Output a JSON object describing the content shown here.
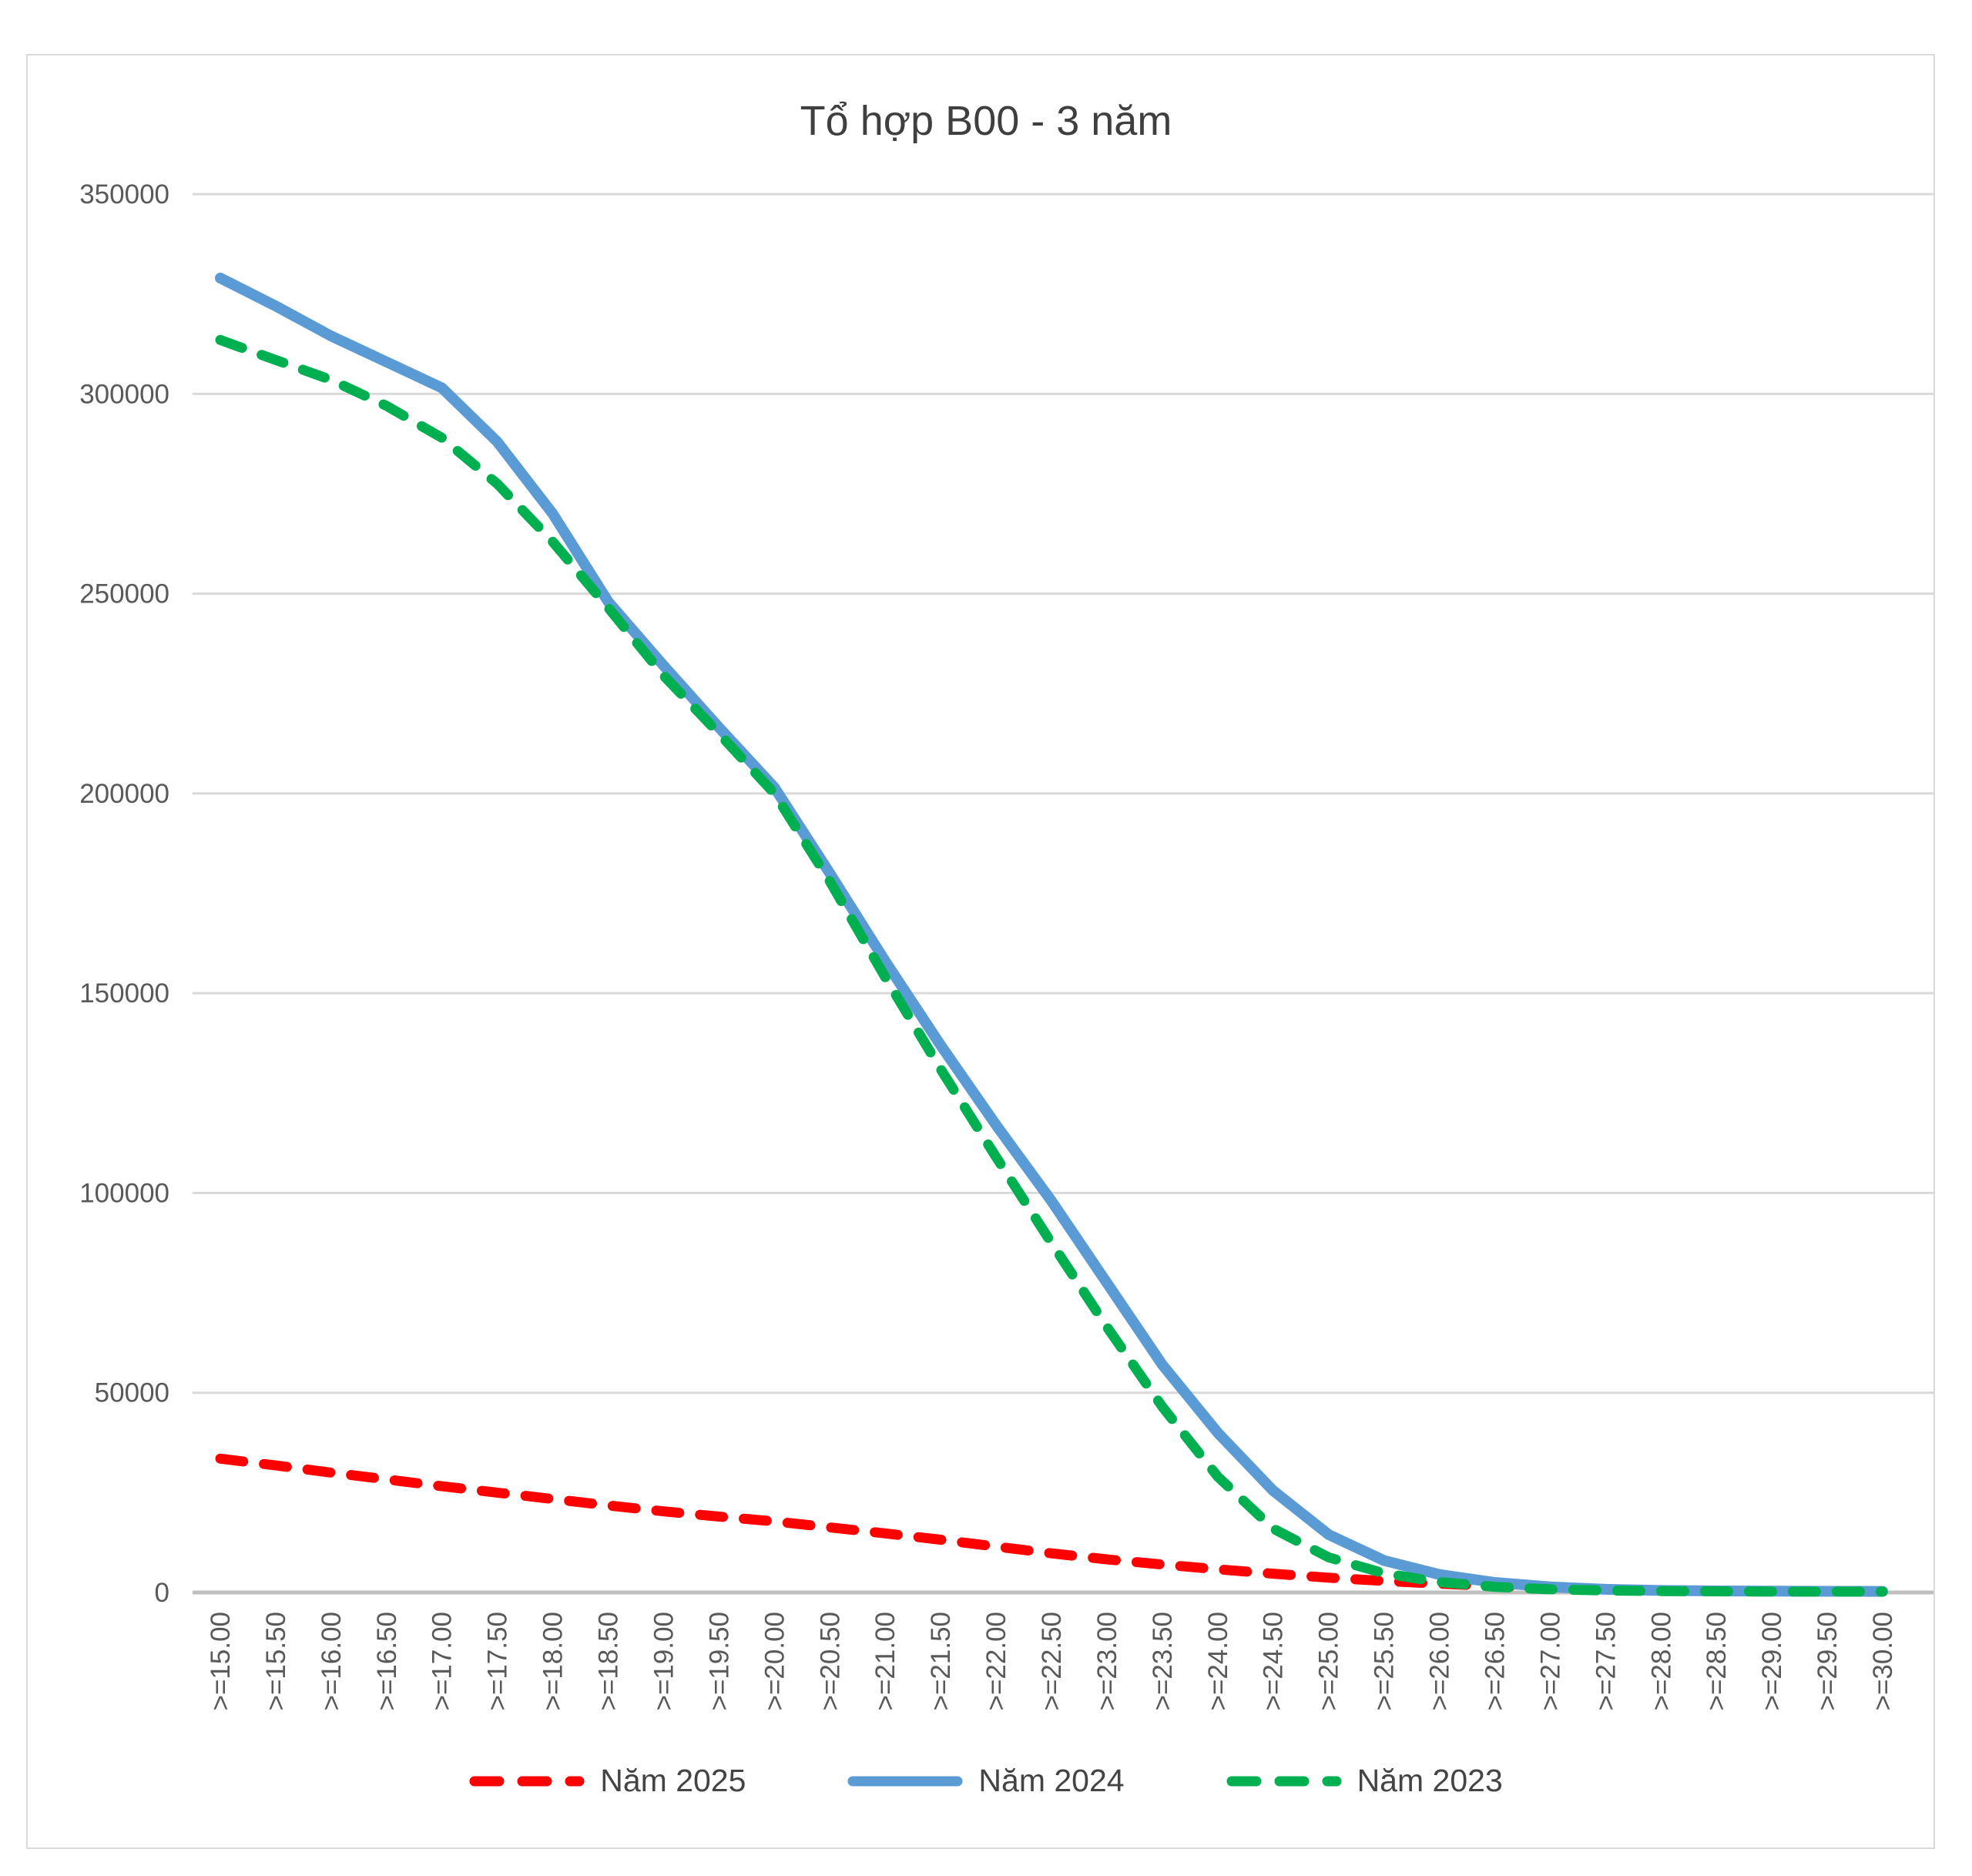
{
  "chart": {
    "title": "Tổ hợp B00 - 3 năm"
  },
  "chart_data": {
    "type": "line",
    "title": "Tổ hợp B00 - 3 năm",
    "xlabel": "",
    "ylabel": "",
    "categories": [
      ">=15.00",
      ">=15.50",
      ">=16.00",
      ">=16.50",
      ">=17.00",
      ">=17.50",
      ">=18.00",
      ">=18.50",
      ">=19.00",
      ">=19.50",
      ">=20.00",
      ">=20.50",
      ">=21.00",
      ">=21.50",
      ">=22.00",
      ">=22.50",
      ">=23.00",
      ">=23.50",
      ">=24.00",
      ">=24.50",
      ">=25.00",
      ">=25.50",
      ">=26.00",
      ">=26.50",
      ">=27.00",
      ">=27.50",
      ">=28.00",
      ">=28.50",
      ">=29.00",
      ">=29.50",
      ">=30.00"
    ],
    "series": [
      {
        "name": "Năm 2025",
        "color": "#FF0000",
        "dashed": true,
        "values": [
          33500,
          31800,
          30000,
          28300,
          26600,
          25000,
          23400,
          21800,
          20300,
          19000,
          17800,
          16300,
          14800,
          13200,
          11500,
          9800,
          8300,
          7000,
          5800,
          4700,
          3700,
          2900,
          2200,
          1600,
          1100,
          750,
          500,
          380,
          300,
          260,
          240
        ]
      },
      {
        "name": "Năm 2024",
        "color": "#5B9BD5",
        "dashed": false,
        "values": [
          329000,
          322000,
          314500,
          308000,
          301500,
          288000,
          270000,
          248000,
          232000,
          216500,
          201500,
          180000,
          158000,
          137000,
          117000,
          98000,
          77500,
          57000,
          40000,
          25500,
          14500,
          8000,
          4500,
          2500,
          1400,
          800,
          500,
          380,
          320,
          290,
          270
        ]
      },
      {
        "name": "Năm 2023",
        "color": "#00B050",
        "dashed": true,
        "values": [
          313500,
          308500,
          303500,
          297000,
          289000,
          277500,
          263000,
          246500,
          229500,
          215000,
          200000,
          178000,
          154000,
          131000,
          109000,
          87500,
          66500,
          46500,
          29000,
          16000,
          8800,
          4800,
          2600,
          1400,
          800,
          500,
          350,
          280,
          240,
          220,
          210
        ]
      }
    ],
    "ylim": [
      0,
      350000
    ],
    "ytick_step": 50000,
    "ytick_labels": [
      "0",
      "50000",
      "100000",
      "150000",
      "200000",
      "250000",
      "300000",
      "350000"
    ],
    "grid": "horizontal",
    "legend_position": "bottom"
  },
  "style_colors": {
    "gridline": "#D9D9D9",
    "baseline": "#BFBFBF",
    "axis_text": "#595959",
    "title_text": "#3f3f3f",
    "frame_border": "#D9D9D9"
  }
}
